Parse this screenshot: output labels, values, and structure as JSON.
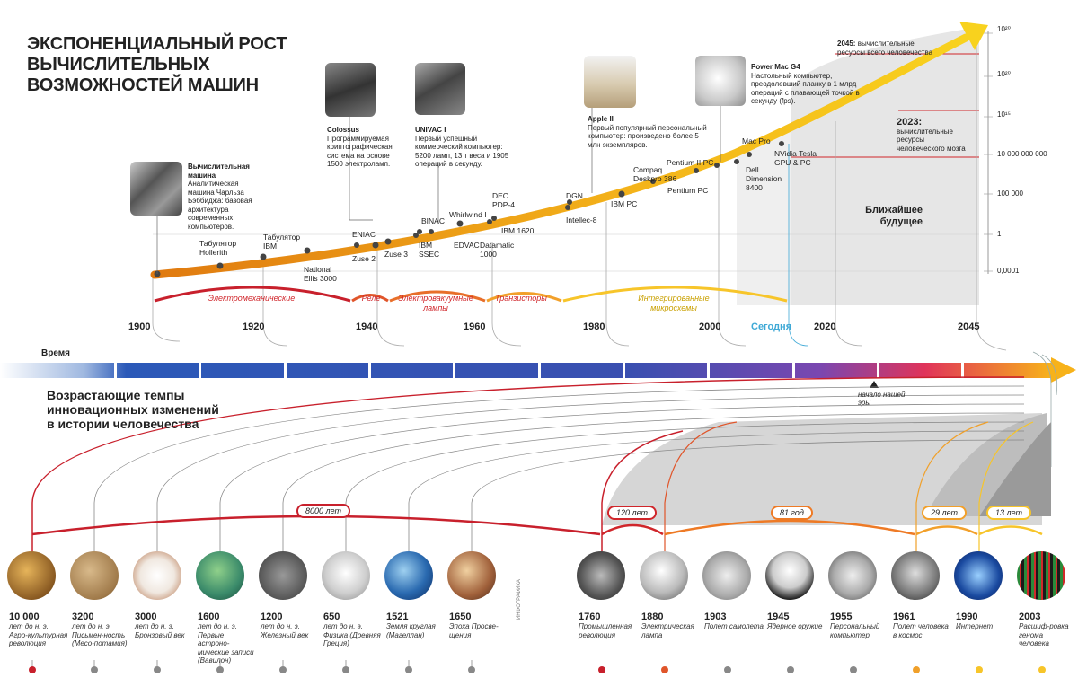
{
  "title_lines": [
    "ЭКСПОНЕНЦИАЛЬНЫЙ РОСТ",
    "ВЫЧИСЛИТЕЛЬНЫХ",
    "ВОЗМОЖНОСТЕЙ МАШИН"
  ],
  "scale": [
    "10²⁰",
    "10²⁰",
    "10¹⁵",
    "10 000 000 000",
    "100 000",
    "1",
    "0,0001"
  ],
  "years": [
    "1900",
    "1920",
    "1940",
    "1960",
    "1980",
    "2000",
    "Сегодня",
    "2020",
    "2045"
  ],
  "eras": [
    "Электромеханические",
    "Реле",
    "Электровакуумные лампы",
    "Транзисторы",
    "Интегрированные микросхемы"
  ],
  "machines": [
    "Табулятор Hollerith",
    "Табулятор IBM",
    "National Ellis 3000",
    "Zuse 2",
    "ENIAC",
    "Zuse 3",
    "BINAC",
    "IBM SSEC",
    "EDVAC",
    "Whirlwind I",
    "DEC PDP-4",
    "IBM 1620",
    "Datamatic 1000",
    "DGN",
    "Intellec-8",
    "IBM PC",
    "Compaq Deskpro 386",
    "Pentium II PC",
    "Pentium PC",
    "Mac Pro",
    "Dell Dimension 8400",
    "NVidia Tesla GPU & PC"
  ],
  "callouts": {
    "babbage_h": "Вычислительная машина",
    "babbage": "Аналитическая машина Чарльза Бэббиджа: базовая архитектура современных компьютеров.",
    "colossus_h": "Colossus",
    "colossus": "Программируемая криптографическая система на основе 1500 электроламп.",
    "univac_h": "UNIVAC I",
    "univac": "Первый успешный коммерческий компьютер: 5200 ламп, 13 т веса и 1905 операций в секунду.",
    "apple_h": "Apple II",
    "apple": "Первый популярный персональный компьютер: произведено более 5 млн экземпляров.",
    "mac_h": "Power Mac G4",
    "mac": "Настольный компьютер, преодолевший планку в 1 млрд операций с плавающей точкой в секунду (fps).",
    "y2045": "2045:",
    "y2045_t": "вычислительные ресурсы всего человечества",
    "y2023": "2023:",
    "y2023_t": "вычислительные ресурсы человеческого мозга",
    "future": "Ближайшее будущее"
  },
  "time_label": "Время",
  "era_start": "начало нашей эры",
  "subtitle": [
    "Возрастающие темпы",
    "инновационных изменений",
    "в истории человечества"
  ],
  "intervals": [
    "8000 лет",
    "120 лет",
    "81 год",
    "29 лет",
    "13 лет"
  ],
  "events": [
    {
      "y": "10 000",
      "d": "лет до н. э. Агро-культурная революция"
    },
    {
      "y": "3200",
      "d": "лет до н. э. Письмен-ность (Месо-потамия)"
    },
    {
      "y": "3000",
      "d": "лет до н. э. Бронзовый век"
    },
    {
      "y": "1600",
      "d": "лет до н. э. Первые астроно-мические записи (Вавилон)"
    },
    {
      "y": "1200",
      "d": "лет до н. э. Железный век"
    },
    {
      "y": "650",
      "d": "лет до н. э. Физика (Древняя Греция)"
    },
    {
      "y": "1521",
      "d": "Земля круглая (Магеллан)"
    },
    {
      "y": "1650",
      "d": "Эпоха Просве-щения"
    },
    {
      "y": "1760",
      "d": "Промышленная революция"
    },
    {
      "y": "1880",
      "d": "Электрическая лампа"
    },
    {
      "y": "1903",
      "d": "Полет самолета"
    },
    {
      "y": "1945",
      "d": "Ядерное оружие"
    },
    {
      "y": "1955",
      "d": "Персональный компьютер"
    },
    {
      "y": "1961",
      "d": "Полет человека в космос"
    },
    {
      "y": "1990",
      "d": "Интернет"
    },
    {
      "y": "2003",
      "d": "Расшиф-ровка генома человека"
    }
  ],
  "credit": "ИНФОГРАФИКА"
}
